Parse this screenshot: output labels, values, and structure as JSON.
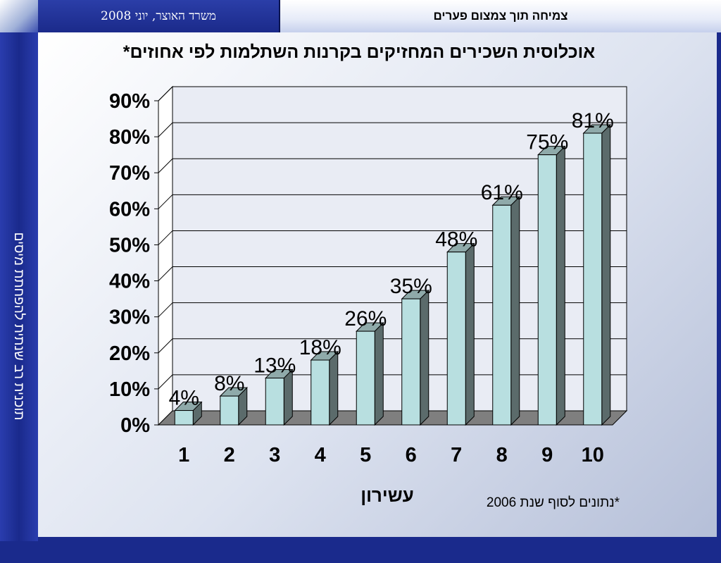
{
  "header": {
    "date": "משרד האוצר, יוני 2008",
    "title": "צמיחה תוך צמצום פערים"
  },
  "sidebar": {
    "label": "תוכנית רב שנתית להפחתת מיסים"
  },
  "colors": {
    "frame": "#1a2a8c",
    "bar_front": "#b8dfe0",
    "bar_side": "#5b6b6b",
    "bar_top": "#8faaaa",
    "floor": "#7f7f7f"
  },
  "chart_data": {
    "type": "bar",
    "title": "אוכלוסית השכירים המחזיקים בקרנות השתלמות לפי אחוזים*",
    "xlabel": "עשירון",
    "ylabel": "",
    "categories": [
      "1",
      "2",
      "3",
      "4",
      "5",
      "6",
      "7",
      "8",
      "9",
      "10"
    ],
    "values": [
      4,
      8,
      13,
      18,
      26,
      35,
      48,
      61,
      75,
      81
    ],
    "data_labels": [
      "4%",
      "8%",
      "13%",
      "18%",
      "26%",
      "35%",
      "48%",
      "61%",
      "75%",
      "81%"
    ],
    "y_ticks": [
      "0%",
      "10%",
      "20%",
      "30%",
      "40%",
      "50%",
      "60%",
      "70%",
      "80%",
      "90%"
    ],
    "ylim": [
      0,
      90
    ],
    "grid": true,
    "style": "3d-column"
  },
  "footnote": "*נתונים לסוף שנת 2006"
}
